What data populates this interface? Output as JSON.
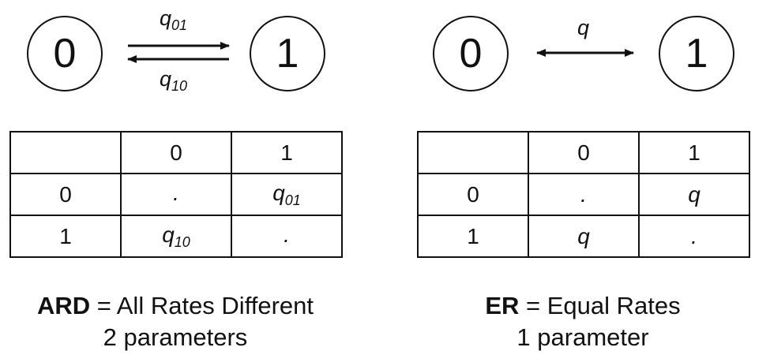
{
  "ard": {
    "state_from": "0",
    "state_to": "1",
    "rate_forward": {
      "base": "q",
      "sub": "01"
    },
    "rate_backward": {
      "base": "q",
      "sub": "10"
    },
    "matrix": {
      "header": [
        "",
        "0",
        "1"
      ],
      "rows": [
        {
          "label": "0",
          "c0": {
            "base": ".",
            "sub": ""
          },
          "c1": {
            "base": "q",
            "sub": "01"
          }
        },
        {
          "label": "1",
          "c0": {
            "base": "q",
            "sub": "10"
          },
          "c1": {
            "base": ".",
            "sub": ""
          }
        }
      ]
    },
    "caption_abbr": "ARD",
    "caption_rest": " = All Rates Different",
    "caption_params": "2 parameters"
  },
  "er": {
    "state_from": "0",
    "state_to": "1",
    "rate": "q",
    "matrix": {
      "header": [
        "",
        "0",
        "1"
      ],
      "rows": [
        {
          "label": "0",
          "c0": ".",
          "c1": "q"
        },
        {
          "label": "1",
          "c0": "q",
          "c1": "."
        }
      ]
    },
    "caption_abbr": "ER",
    "caption_rest": " = Equal Rates",
    "caption_params": "1 parameter"
  }
}
